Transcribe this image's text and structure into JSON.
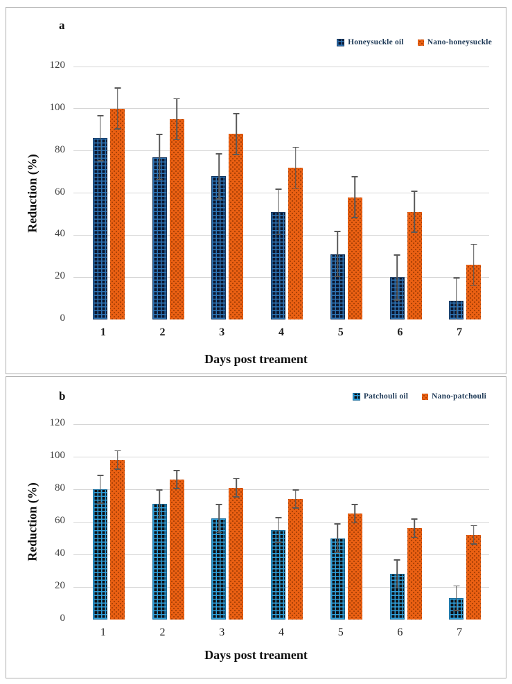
{
  "colors": {
    "oil_navy": "#1F3864",
    "oil_blue": "#2E9BD5",
    "nano_orange": "#E8590C",
    "error_bar": "#595959",
    "gridline": "#D6D6D6",
    "panel_border": "#ABABAB",
    "legend_text": "#1F3A57"
  },
  "chart_data": [
    {
      "type": "bar",
      "panel_label": "a",
      "title": "",
      "xlabel": "Days post treament",
      "ylabel": "Reduction (%)",
      "categories": [
        "1",
        "2",
        "3",
        "4",
        "5",
        "6",
        "7"
      ],
      "ylim": [
        0,
        120
      ],
      "ytick_step": 20,
      "yticks": [
        "0",
        "20",
        "40",
        "60",
        "80",
        "100",
        "120"
      ],
      "grid": true,
      "legend_position": "top-right",
      "series": [
        {
          "name": "Honeysuckle oil",
          "values": [
            86,
            77,
            68,
            51,
            31,
            20,
            9
          ],
          "errors": [
            11,
            11,
            11,
            11,
            11,
            11,
            11
          ],
          "style": "checker-navy",
          "color": "#1F3864"
        },
        {
          "name": "Nano-honeysuckle",
          "values": [
            100,
            95,
            88,
            72,
            58,
            51,
            26
          ],
          "errors": [
            10,
            10,
            10,
            10,
            10,
            10,
            10
          ],
          "style": "dotted-orange",
          "color": "#E8590C"
        }
      ]
    },
    {
      "type": "bar",
      "panel_label": "b",
      "title": "",
      "xlabel": "Days post treament",
      "ylabel": "Reduction (%)",
      "categories": [
        "1",
        "2",
        "3",
        "4",
        "5",
        "6",
        "7"
      ],
      "ylim": [
        0,
        120
      ],
      "ytick_step": 20,
      "yticks": [
        "0",
        "20",
        "40",
        "60",
        "80",
        "100",
        "120"
      ],
      "grid": true,
      "legend_position": "top-right",
      "series": [
        {
          "name": "Patchouli oil",
          "values": [
            80,
            71,
            62,
            55,
            50,
            28,
            13
          ],
          "errors": [
            9,
            9,
            9,
            8,
            9,
            9,
            8
          ],
          "style": "checker-blue",
          "color": "#2E9BD5"
        },
        {
          "name": "Nano-patchouli",
          "values": [
            98,
            86,
            81,
            74,
            65,
            56,
            52
          ],
          "errors": [
            6,
            6,
            6,
            6,
            6,
            6,
            6
          ],
          "style": "dotted-orange",
          "color": "#E8590C"
        }
      ]
    }
  ]
}
